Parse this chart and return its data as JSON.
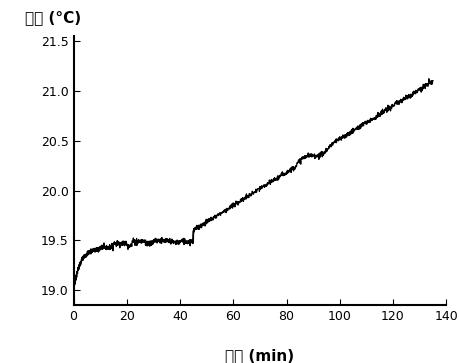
{
  "title": "温度 (°C)",
  "xlabel": "时间 (min)",
  "xlim": [
    0,
    140
  ],
  "ylim": [
    18.85,
    21.55
  ],
  "xticks": [
    0,
    20,
    40,
    60,
    80,
    100,
    120,
    140
  ],
  "yticks": [
    19.0,
    19.5,
    20.0,
    20.5,
    21.0,
    21.5
  ],
  "line_color": "#000000",
  "background_color": "#ffffff",
  "title_fontsize": 11,
  "xlabel_fontsize": 11,
  "tick_fontsize": 9
}
